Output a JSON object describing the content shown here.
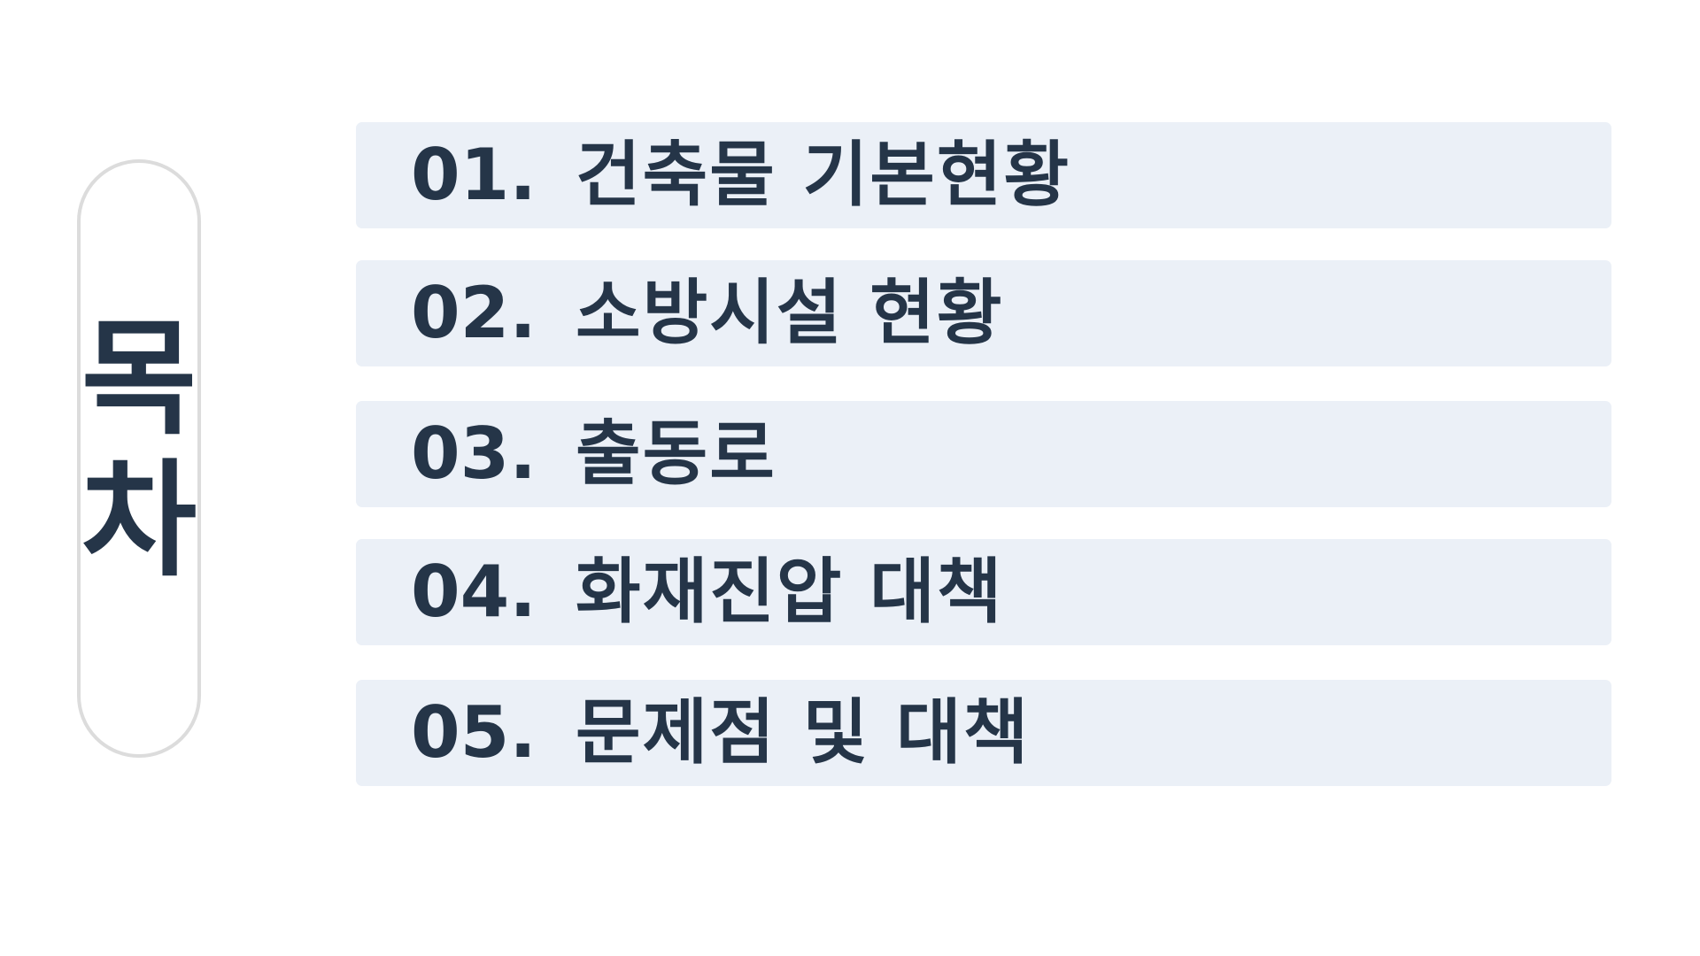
{
  "title": {
    "char1": "목",
    "char2": "차"
  },
  "toc": {
    "items": [
      {
        "number": "01.",
        "label": "건축물 기본현황"
      },
      {
        "number": "02.",
        "label": "소방시설 현황"
      },
      {
        "number": "03.",
        "label": "출동로"
      },
      {
        "number": "04.",
        "label": "화재진압 대책"
      },
      {
        "number": "05.",
        "label": "문제점 및 대책"
      }
    ]
  },
  "colors": {
    "text": "#253548",
    "item_background": "#ebf0f7",
    "pill_border": "#dcdcdc",
    "page_background": "#ffffff"
  }
}
